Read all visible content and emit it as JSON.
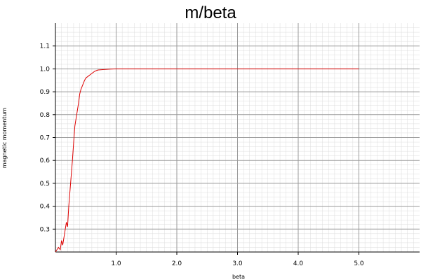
{
  "chart_data": {
    "type": "line",
    "title": "m/beta",
    "xlabel": "beta",
    "ylabel": "magnetic momentum",
    "xlim": [
      0.0,
      6.0
    ],
    "ylim": [
      0.2,
      1.2
    ],
    "x_ticks": [
      "1.0",
      "2.0",
      "3.0",
      "4.0",
      "5.0"
    ],
    "y_ticks": [
      "0.3",
      "0.4",
      "0.5",
      "0.6",
      "0.7",
      "0.8",
      "0.9",
      "1.0",
      "1.1"
    ],
    "grid": true,
    "colors": {
      "series": "#dd0000",
      "grid_major": "#9a9a9a",
      "grid_minor": "#dcdcdc"
    },
    "series": [
      {
        "x": [
          0.0,
          0.05,
          0.08,
          0.1,
          0.12,
          0.15,
          0.18,
          0.2,
          0.22,
          0.25,
          0.28,
          0.3,
          0.32,
          0.35,
          0.38,
          0.4,
          0.42,
          0.45,
          0.48,
          0.5,
          0.55,
          0.6,
          0.65,
          0.7,
          0.8,
          0.9,
          1.0,
          1.5,
          2.0,
          3.0,
          4.0,
          5.0
        ],
        "y": [
          0.2,
          0.22,
          0.21,
          0.25,
          0.23,
          0.28,
          0.33,
          0.31,
          0.4,
          0.5,
          0.6,
          0.68,
          0.75,
          0.8,
          0.85,
          0.89,
          0.91,
          0.93,
          0.95,
          0.96,
          0.97,
          0.98,
          0.99,
          0.995,
          0.997,
          0.999,
          1.0,
          1.0,
          1.0,
          1.0,
          1.0,
          1.0
        ]
      }
    ]
  }
}
